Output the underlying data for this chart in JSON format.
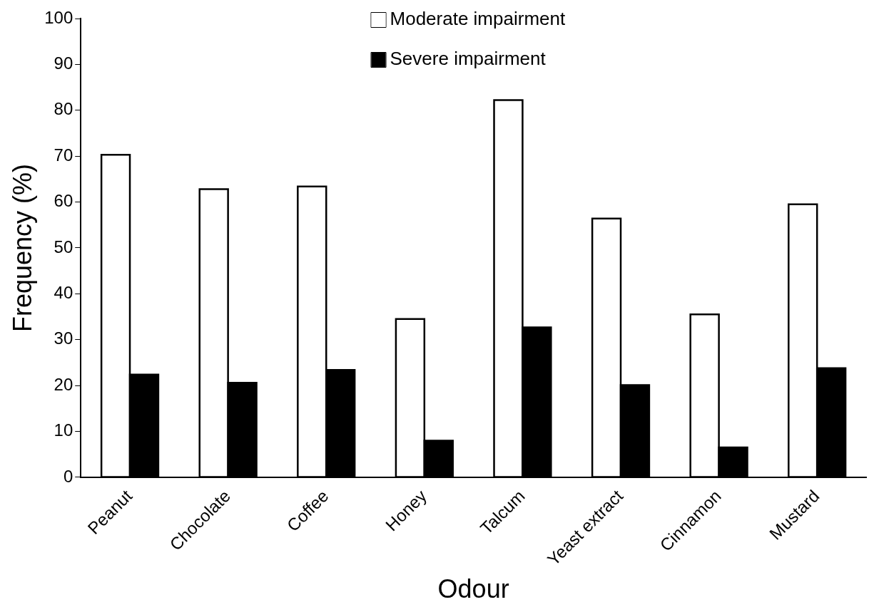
{
  "chart_data": {
    "type": "bar",
    "xlabel": "Odour",
    "ylabel": "Frequency (%)",
    "categories": [
      "Peanut",
      "Chocolate",
      "Coffee",
      "Honey",
      "Talcum",
      "Yeast extract",
      "Cinnamon",
      "Mustard"
    ],
    "series": [
      {
        "name": "Moderate impairment",
        "color": "#ffffff",
        "values": [
          70.3,
          62.8,
          63.4,
          34.5,
          82.2,
          56.4,
          35.5,
          59.5
        ]
      },
      {
        "name": "Severe impairment",
        "color": "#000000",
        "values": [
          22.4,
          20.6,
          23.4,
          8.0,
          32.7,
          20.1,
          6.5,
          23.8
        ]
      }
    ],
    "ylim": [
      0,
      100
    ],
    "yticks": [
      0,
      10,
      20,
      30,
      40,
      50,
      60,
      70,
      80,
      90,
      100
    ],
    "grid": false,
    "legend": "top"
  }
}
